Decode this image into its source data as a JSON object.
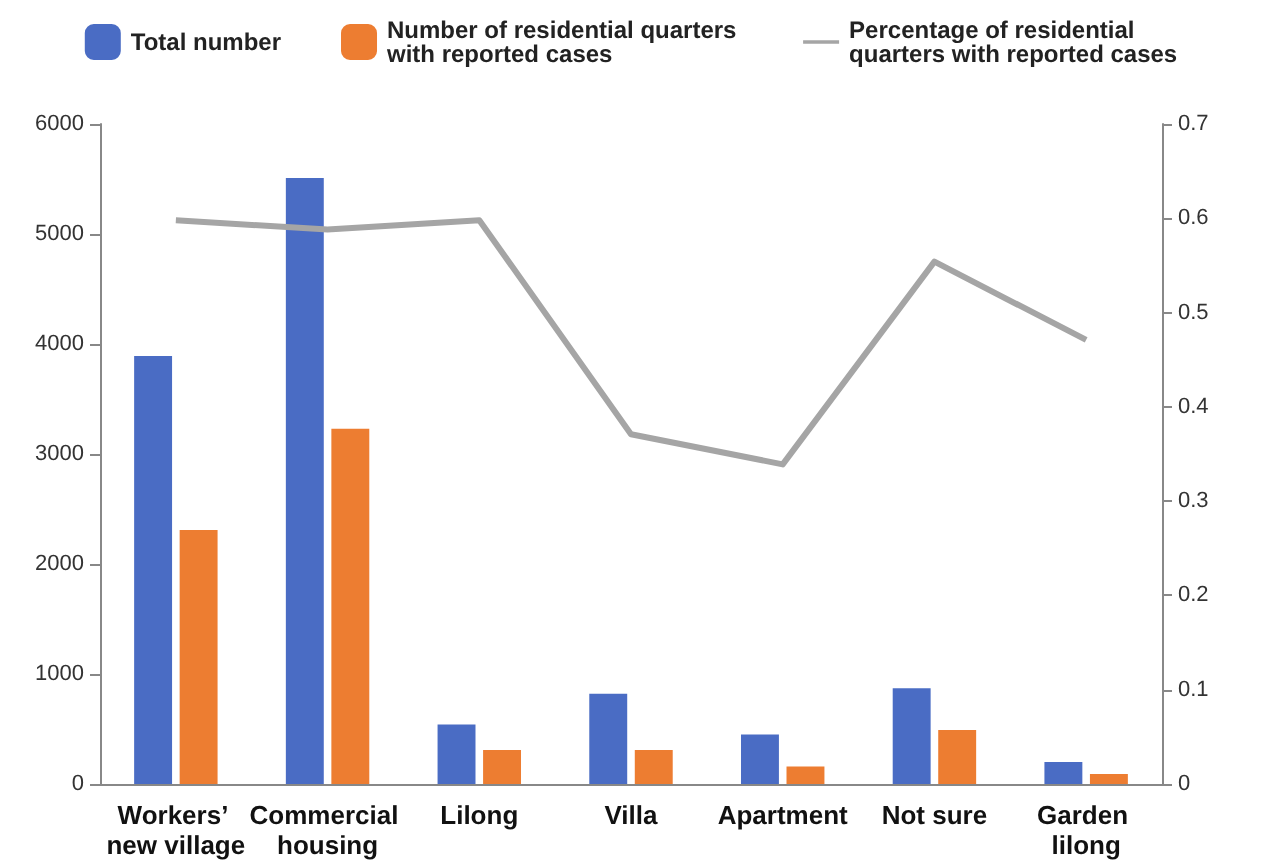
{
  "chart_data": {
    "type": "bar",
    "categories": [
      "Workers’ new village",
      "Commercial housing",
      "Lilong",
      "Villa",
      "Apartment",
      "Not sure",
      "Garden lilong"
    ],
    "series": [
      {
        "name": "Total number",
        "color": "#4a6cc4",
        "values": [
          3890,
          5510,
          540,
          820,
          450,
          870,
          200
        ]
      },
      {
        "name": "Number of residential quarters with reported cases",
        "color": "#ed7d31",
        "values": [
          2310,
          3230,
          310,
          310,
          160,
          490,
          90
        ]
      },
      {
        "name": "Percentage of residential quarters with reported cases",
        "type": "line",
        "axis": "y2",
        "color": "#a5a5a5",
        "values": [
          0.598,
          0.588,
          0.598,
          0.371,
          0.339,
          0.554,
          0.471
        ]
      }
    ],
    "ylim": [
      0,
      6000
    ],
    "yticks": [
      0,
      1000,
      2000,
      3000,
      4000,
      5000,
      6000
    ],
    "y2lim": [
      0,
      0.7
    ],
    "y2ticks": [
      0,
      0.1,
      0.2,
      0.3,
      0.4,
      0.5,
      0.6,
      0.7
    ],
    "legend": "top",
    "grid": false,
    "marker": "none",
    "line_style": "solid"
  }
}
